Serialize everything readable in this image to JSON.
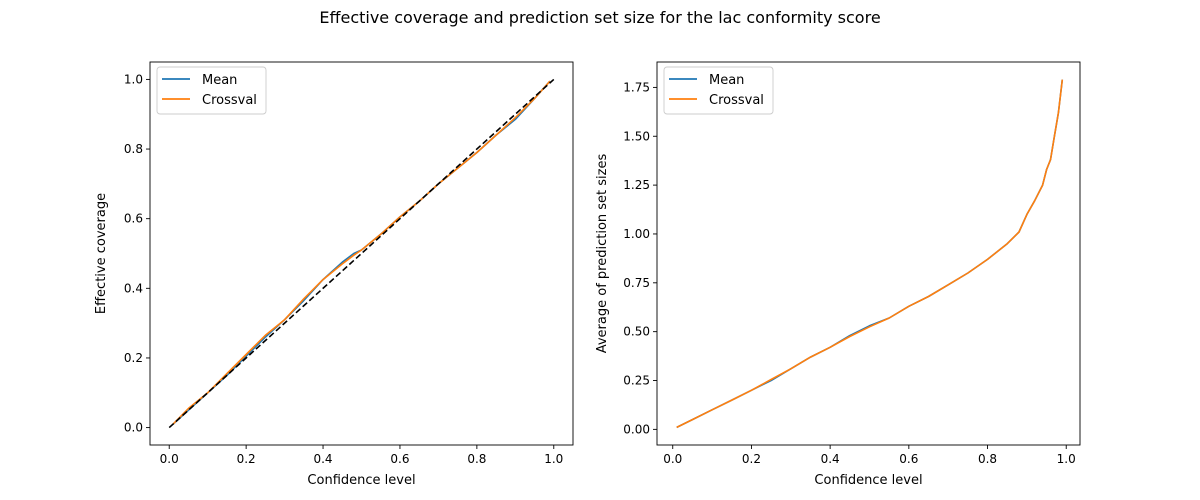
{
  "title": "Effective coverage and prediction set size for the lac conformity score",
  "colors": {
    "mean": "#1f77b4",
    "crossval": "#ff7f0e",
    "reference": "#000000"
  },
  "chart_data": [
    {
      "type": "line",
      "xlabel": "Confidence level",
      "ylabel": "Effective coverage",
      "xlim": [
        -0.05,
        1.05
      ],
      "ylim": [
        -0.05,
        1.05
      ],
      "xticks": [
        "0.0",
        "0.2",
        "0.4",
        "0.6",
        "0.8",
        "1.0"
      ],
      "yticks": [
        "0.0",
        "0.2",
        "0.4",
        "0.6",
        "0.8",
        "1.0"
      ],
      "legend": "top-left",
      "grid": false,
      "x": [
        0.01,
        0.05,
        0.1,
        0.15,
        0.2,
        0.25,
        0.3,
        0.35,
        0.4,
        0.45,
        0.48,
        0.5,
        0.55,
        0.6,
        0.65,
        0.7,
        0.75,
        0.8,
        0.85,
        0.9,
        0.95,
        0.99
      ],
      "series": [
        {
          "name": "Mean",
          "values": [
            0.01,
            0.05,
            0.1,
            0.15,
            0.205,
            0.26,
            0.31,
            0.365,
            0.425,
            0.475,
            0.5,
            0.51,
            0.555,
            0.605,
            0.65,
            0.7,
            0.745,
            0.79,
            0.84,
            0.885,
            0.945,
            0.995
          ]
        },
        {
          "name": "Crossval",
          "values": [
            0.01,
            0.055,
            0.1,
            0.155,
            0.21,
            0.265,
            0.31,
            0.37,
            0.425,
            0.47,
            0.495,
            0.51,
            0.555,
            0.605,
            0.65,
            0.7,
            0.745,
            0.79,
            0.84,
            0.89,
            0.945,
            0.995
          ]
        }
      ],
      "reference_line": {
        "x": [
          0,
          1
        ],
        "y": [
          0,
          1
        ],
        "style": "dashed"
      }
    },
    {
      "type": "line",
      "xlabel": "Confidence level",
      "ylabel": "Average of prediction set sizes",
      "xlim": [
        -0.04,
        1.035
      ],
      "ylim": [
        -0.08,
        1.88
      ],
      "xticks": [
        "0.0",
        "0.2",
        "0.4",
        "0.6",
        "0.8",
        "1.0"
      ],
      "yticks": [
        "0.00",
        "0.25",
        "0.50",
        "0.75",
        "1.00",
        "1.25",
        "1.50",
        "1.75"
      ],
      "legend": "top-left",
      "grid": false,
      "x": [
        0.01,
        0.05,
        0.1,
        0.15,
        0.2,
        0.25,
        0.3,
        0.35,
        0.4,
        0.45,
        0.5,
        0.55,
        0.6,
        0.65,
        0.7,
        0.75,
        0.8,
        0.85,
        0.88,
        0.9,
        0.92,
        0.94,
        0.95,
        0.96,
        0.97,
        0.98,
        0.99
      ],
      "series": [
        {
          "name": "Mean",
          "values": [
            0.01,
            0.05,
            0.1,
            0.15,
            0.2,
            0.25,
            0.31,
            0.37,
            0.42,
            0.48,
            0.53,
            0.57,
            0.63,
            0.68,
            0.74,
            0.8,
            0.87,
            0.95,
            1.01,
            1.1,
            1.17,
            1.25,
            1.33,
            1.38,
            1.5,
            1.62,
            1.79
          ]
        },
        {
          "name": "Crossval",
          "values": [
            0.01,
            0.05,
            0.1,
            0.15,
            0.2,
            0.255,
            0.31,
            0.37,
            0.42,
            0.475,
            0.525,
            0.57,
            0.63,
            0.68,
            0.74,
            0.8,
            0.87,
            0.95,
            1.01,
            1.1,
            1.17,
            1.25,
            1.33,
            1.38,
            1.5,
            1.62,
            1.79
          ]
        }
      ]
    }
  ]
}
